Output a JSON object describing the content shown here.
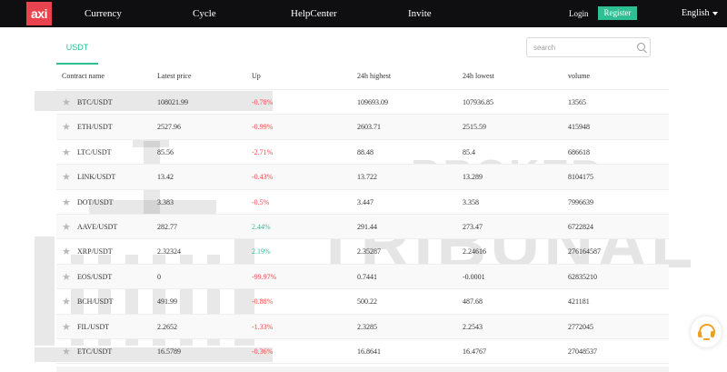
{
  "nav": {
    "logo": "axi",
    "links": [
      "Currency",
      "Cycle",
      "HelpCenter",
      "Invite"
    ],
    "login": "Login",
    "register": "Register",
    "language": "English"
  },
  "tabs": [
    "USDT"
  ],
  "search": {
    "placeholder": "search"
  },
  "table": {
    "headers": [
      "Contract name",
      "Latest price",
      "Up",
      "24h highest",
      "24h lowest",
      "volume"
    ],
    "rows": [
      {
        "pair": "BTC/USDT",
        "price": "108021.99",
        "up": "-0.78%",
        "high": "109693.09",
        "low": "107936.85",
        "volume": "13565"
      },
      {
        "pair": "ETH/USDT",
        "price": "2527.96",
        "up": "-0.99%",
        "high": "2603.71",
        "low": "2515.59",
        "volume": "415948"
      },
      {
        "pair": "LTC/USDT",
        "price": "85.56",
        "up": "-2.71%",
        "high": "88.48",
        "low": "85.4",
        "volume": "686618"
      },
      {
        "pair": "LINK/USDT",
        "price": "13.42",
        "up": "-0.43%",
        "high": "13.722",
        "low": "13.289",
        "volume": "8104175"
      },
      {
        "pair": "DOT/USDT",
        "price": "3.383",
        "up": "-0.5%",
        "high": "3.447",
        "low": "3.358",
        "volume": "7996639"
      },
      {
        "pair": "AAVE/USDT",
        "price": "282.77",
        "up": "2.44%",
        "high": "291.44",
        "low": "273.47",
        "volume": "6722824"
      },
      {
        "pair": "XRP/USDT",
        "price": "2.32324",
        "up": "2.19%",
        "high": "2.35287",
        "low": "2.24616",
        "volume": "276164587"
      },
      {
        "pair": "EOS/USDT",
        "price": "0",
        "up": "-99.97%",
        "high": "0.7441",
        "low": "-0.0001",
        "volume": "62835210"
      },
      {
        "pair": "BCH/USDT",
        "price": "491.99",
        "up": "-0.88%",
        "high": "500.22",
        "low": "487.68",
        "volume": "421181"
      },
      {
        "pair": "FIL/USDT",
        "price": "2.2652",
        "up": "-1.33%",
        "high": "2.3285",
        "low": "2.2543",
        "volume": "2772045"
      },
      {
        "pair": "ETC/USDT",
        "price": "16.5789",
        "up": "-0.36%",
        "high": "16.8641",
        "low": "16.4767",
        "volume": "27048537"
      }
    ]
  },
  "watermark": {
    "line1": "BROKER",
    "line2": "TRIBUNAL"
  },
  "icons": {
    "favorite": "star-icon",
    "search": "search-icon",
    "support": "headset-icon",
    "language": "chevron-down-icon"
  },
  "colors": {
    "brand": "#e8434f",
    "accent": "#2ebf94",
    "negative": "#e84a4a",
    "navbar": "#0f0f12",
    "support": "#f0a020"
  }
}
